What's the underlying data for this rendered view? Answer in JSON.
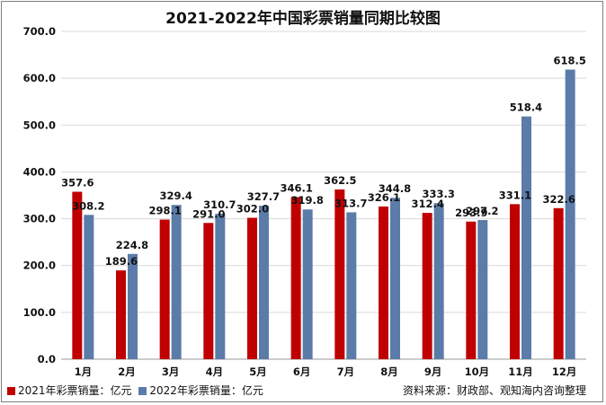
{
  "chart_data": {
    "type": "bar",
    "title": "2021-2022年中国彩票销量同期比较图",
    "categories": [
      "1月",
      "2月",
      "3月",
      "4月",
      "5月",
      "6月",
      "7月",
      "8月",
      "9月",
      "10月",
      "11月",
      "12月"
    ],
    "series": [
      {
        "name": "2021年彩票销量：亿元",
        "color": "#c00000",
        "values": [
          357.6,
          189.6,
          298.1,
          291.0,
          302.0,
          346.1,
          362.5,
          326.1,
          312.4,
          293.9,
          331.1,
          322.6
        ]
      },
      {
        "name": "2022年彩票销量：亿元",
        "color": "#5b7ca8",
        "values": [
          308.2,
          224.8,
          329.4,
          310.7,
          327.7,
          319.8,
          313.7,
          344.8,
          333.3,
          297.2,
          518.4,
          618.5
        ]
      }
    ],
    "ylim": [
      0,
      700
    ],
    "yticks": [
      "0.0",
      "100.0",
      "200.0",
      "300.0",
      "400.0",
      "500.0",
      "600.0",
      "700.0"
    ],
    "grid": true,
    "legend_position": "bottom-left",
    "source": "资料来源：财政部、观知海内咨询整理"
  }
}
